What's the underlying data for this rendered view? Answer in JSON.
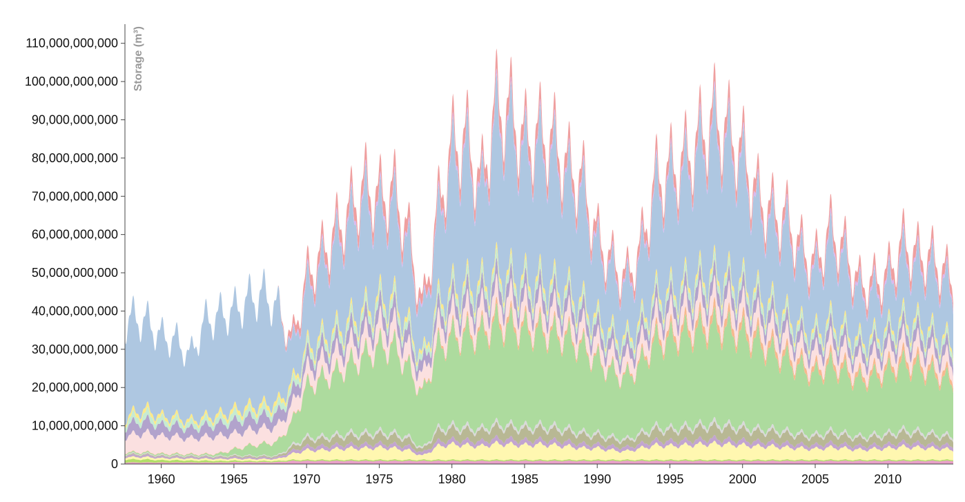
{
  "chart_data": {
    "type": "area",
    "stacked": true,
    "title": "",
    "xlabel": "",
    "ylabel": "Storage (m³)",
    "xlim": [
      1957.5,
      2014.5
    ],
    "ylim": [
      0,
      115000000000
    ],
    "grid": false,
    "legend": "none",
    "x_ticks": [
      {
        "value": 1960,
        "label": "1960"
      },
      {
        "value": 1965,
        "label": "1965"
      },
      {
        "value": 1970,
        "label": "1970"
      },
      {
        "value": 1975,
        "label": "1975"
      },
      {
        "value": 1980,
        "label": "1980"
      },
      {
        "value": 1985,
        "label": "1985"
      },
      {
        "value": 1990,
        "label": "1990"
      },
      {
        "value": 1995,
        "label": "1995"
      },
      {
        "value": 2000,
        "label": "2000"
      },
      {
        "value": 2005,
        "label": "2005"
      },
      {
        "value": 2010,
        "label": "2010"
      }
    ],
    "y_ticks": [
      {
        "value": 0,
        "label": "0"
      },
      {
        "value": 10000000000,
        "label": "10,000,000,000"
      },
      {
        "value": 20000000000,
        "label": "20,000,000,000"
      },
      {
        "value": 30000000000,
        "label": "30,000,000,000"
      },
      {
        "value": 40000000000,
        "label": "40,000,000,000"
      },
      {
        "value": 50000000000,
        "label": "50,000,000,000"
      },
      {
        "value": 60000000000,
        "label": "60,000,000,000"
      },
      {
        "value": 70000000000,
        "label": "70,000,000,000"
      },
      {
        "value": 80000000000,
        "label": "80,000,000,000"
      },
      {
        "value": 90000000000,
        "label": "90,000,000,000"
      },
      {
        "value": 100000000000,
        "label": "100,000,000,000"
      },
      {
        "value": 110000000000,
        "label": "110,000,000,000"
      }
    ],
    "x": [
      1957.5,
      1958,
      1959,
      1960,
      1961,
      1962,
      1963,
      1964,
      1965,
      1966,
      1967,
      1968,
      1969,
      1970,
      1971,
      1972,
      1973,
      1974,
      1975,
      1976,
      1977,
      1978,
      1979,
      1980,
      1981,
      1982,
      1983,
      1984,
      1985,
      1986,
      1987,
      1988,
      1989,
      1990,
      1991,
      1992,
      1993,
      1994,
      1995,
      1996,
      1997,
      1998,
      1999,
      2000,
      2001,
      2002,
      2003,
      2004,
      2005,
      2006,
      2007,
      2008,
      2009,
      2010,
      2011,
      2012,
      2013,
      2014,
      2014.5
    ],
    "series": [
      {
        "color": "#e8a0c8",
        "values": [
          0.4,
          0.4,
          0.4,
          0.4,
          0.4,
          0.4,
          0.4,
          0.4,
          0.5,
          0.5,
          0.5,
          0.5,
          0.8,
          0.8,
          0.8,
          0.8,
          0.8,
          0.8,
          0.8,
          0.8,
          0.8,
          0.8,
          0.8,
          0.8,
          0.8,
          0.8,
          0.8,
          0.8,
          0.8,
          0.8,
          0.8,
          0.8,
          0.8,
          0.8,
          0.8,
          0.8,
          0.8,
          0.8,
          0.8,
          0.8,
          0.8,
          0.8,
          0.8,
          0.8,
          0.8,
          0.8,
          0.8,
          0.8,
          0.8,
          0.8,
          0.8,
          0.8,
          0.8,
          0.8,
          0.8,
          0.8,
          0.8,
          0.8,
          0.8
        ]
      },
      {
        "color": "#b3de69",
        "values": [
          0.8,
          0.8,
          0.8,
          0.6,
          0.6,
          0.5,
          0.5,
          0.4,
          0.4,
          0.3,
          0.3,
          0.3,
          0.3,
          0.3,
          0.3,
          0.3,
          0.3,
          0.3,
          0.3,
          0.3,
          0.3,
          0.3,
          0.3,
          0.3,
          0.3,
          0.3,
          0.3,
          0.3,
          0.3,
          0.3,
          0.3,
          0.3,
          0.3,
          0.3,
          0.3,
          0.3,
          0.3,
          0.3,
          0.3,
          0.3,
          0.3,
          0.3,
          0.3,
          0.3,
          0.3,
          0.3,
          0.3,
          0.3,
          0.3,
          0.3,
          0.3,
          0.3,
          0.3,
          0.3,
          0.3,
          0.3,
          0.3,
          0.3,
          0.3
        ]
      },
      {
        "color": "#fff7b0",
        "values": [
          0.6,
          0.6,
          0.6,
          0.5,
          0.5,
          0.5,
          0.5,
          0.5,
          0.5,
          0.5,
          0.5,
          0.5,
          1.5,
          2.5,
          2.5,
          2.8,
          3.0,
          3.0,
          3.2,
          3.0,
          2.5,
          1.0,
          3.5,
          4.0,
          3.8,
          3.5,
          4.2,
          4.0,
          3.8,
          4.0,
          3.8,
          3.5,
          3.0,
          3.0,
          2.5,
          2.2,
          3.0,
          3.8,
          3.6,
          3.8,
          4.0,
          4.2,
          4.0,
          3.8,
          3.5,
          3.5,
          3.2,
          3.0,
          2.8,
          3.2,
          3.0,
          2.6,
          2.8,
          3.0,
          3.4,
          3.2,
          3.0,
          2.8,
          2.5
        ]
      },
      {
        "color": "#c2a5cf",
        "values": [
          0.5,
          0.5,
          0.5,
          0.4,
          0.4,
          0.4,
          0.4,
          0.4,
          0.4,
          0.4,
          0.4,
          0.4,
          0.8,
          1.0,
          1.0,
          1.0,
          1.0,
          1.0,
          1.0,
          1.0,
          1.0,
          0.8,
          1.2,
          1.2,
          1.2,
          1.2,
          1.3,
          1.3,
          1.2,
          1.2,
          1.2,
          1.2,
          1.1,
          1.0,
          1.0,
          1.0,
          1.1,
          1.2,
          1.2,
          1.2,
          1.2,
          1.3,
          1.2,
          1.2,
          1.2,
          1.1,
          1.1,
          1.0,
          1.0,
          1.1,
          1.0,
          1.0,
          1.0,
          1.0,
          1.1,
          1.1,
          1.0,
          1.0,
          1.0
        ]
      },
      {
        "color": "#b8b894",
        "values": [
          0.2,
          0.2,
          0.2,
          0.2,
          0.2,
          0.2,
          0.2,
          0.2,
          0.3,
          0.3,
          0.3,
          0.3,
          1.0,
          1.8,
          1.8,
          2.0,
          2.2,
          2.2,
          2.4,
          2.2,
          1.8,
          0.8,
          2.6,
          2.8,
          2.7,
          2.6,
          3.0,
          2.9,
          2.8,
          2.9,
          2.8,
          2.6,
          2.3,
          2.2,
          1.8,
          1.6,
          2.2,
          2.8,
          2.6,
          2.8,
          3.0,
          3.1,
          3.0,
          2.8,
          2.6,
          2.6,
          2.4,
          2.2,
          2.0,
          2.4,
          2.2,
          1.9,
          2.0,
          2.2,
          2.5,
          2.4,
          2.2,
          2.0,
          1.8
        ]
      },
      {
        "color": "#d9d9d9",
        "values": [
          0.2,
          0.2,
          0.2,
          0.2,
          0.2,
          0.2,
          0.2,
          0.2,
          0.2,
          0.2,
          0.2,
          0.2,
          0.5,
          0.7,
          0.7,
          0.7,
          0.8,
          0.8,
          0.8,
          0.8,
          0.7,
          0.4,
          0.8,
          0.9,
          0.9,
          0.8,
          0.9,
          0.9,
          0.9,
          0.9,
          0.9,
          0.8,
          0.8,
          0.7,
          0.7,
          0.6,
          0.7,
          0.9,
          0.8,
          0.9,
          0.9,
          1.0,
          0.9,
          0.9,
          0.8,
          0.8,
          0.8,
          0.7,
          0.7,
          0.8,
          0.7,
          0.6,
          0.7,
          0.7,
          0.8,
          0.8,
          0.7,
          0.7,
          0.6
        ]
      },
      {
        "color": "#addb9e",
        "values": [
          0.3,
          0.3,
          0.3,
          0.3,
          0.3,
          0.3,
          0.3,
          0.6,
          1.5,
          2.5,
          3.0,
          3.5,
          6.0,
          13.0,
          15.0,
          16.0,
          18.0,
          20.0,
          22.0,
          22.5,
          18.0,
          14.0,
          21.0,
          23.0,
          24.0,
          24.5,
          26.0,
          25.5,
          25.0,
          24.5,
          24.0,
          23.5,
          22.0,
          19.0,
          17.0,
          16.0,
          18.0,
          22.0,
          23.0,
          24.0,
          24.5,
          25.0,
          24.5,
          24.0,
          22.5,
          20.0,
          18.5,
          17.0,
          15.5,
          17.0,
          16.0,
          14.5,
          15.0,
          16.0,
          17.0,
          16.5,
          15.5,
          14.5,
          14.0
        ]
      },
      {
        "color": "#f6b98e",
        "values": [
          0.1,
          0.1,
          0.1,
          0.1,
          0.1,
          0.1,
          0.1,
          0.1,
          0.1,
          0.1,
          0.1,
          0.1,
          0.2,
          0.3,
          0.3,
          0.3,
          0.3,
          0.4,
          0.4,
          0.4,
          0.3,
          0.3,
          0.6,
          0.8,
          1.0,
          1.0,
          1.5,
          1.5,
          1.2,
          1.2,
          1.0,
          1.0,
          0.8,
          0.6,
          0.5,
          0.5,
          0.8,
          1.5,
          1.6,
          1.8,
          2.0,
          2.2,
          2.0,
          2.0,
          1.8,
          1.8,
          1.6,
          1.5,
          1.4,
          1.6,
          1.5,
          1.3,
          1.4,
          1.5,
          1.8,
          1.7,
          1.5,
          1.4,
          1.3
        ]
      },
      {
        "color": "#fbe0e0",
        "values": [
          4.0,
          4.5,
          5.0,
          4.5,
          4.5,
          4.0,
          4.5,
          4.5,
          4.0,
          4.0,
          4.0,
          4.0,
          4.0,
          4.0,
          4.2,
          4.5,
          4.5,
          4.8,
          5.0,
          5.0,
          4.5,
          4.0,
          4.5,
          4.8,
          5.0,
          5.0,
          5.2,
          5.0,
          5.0,
          5.0,
          5.0,
          4.8,
          4.5,
          4.2,
          4.0,
          4.0,
          4.2,
          4.5,
          4.5,
          4.8,
          5.0,
          5.0,
          5.0,
          4.8,
          4.5,
          4.5,
          4.2,
          4.0,
          4.0,
          4.2,
          4.0,
          3.8,
          3.8,
          4.0,
          4.2,
          4.2,
          4.0,
          3.8,
          3.5
        ]
      },
      {
        "color": "#b2a3cc",
        "values": [
          2.5,
          3.0,
          3.2,
          2.8,
          2.8,
          2.5,
          2.8,
          3.0,
          3.2,
          3.2,
          3.2,
          3.2,
          3.0,
          3.0,
          3.2,
          3.2,
          3.4,
          3.5,
          3.6,
          3.6,
          3.2,
          2.8,
          3.3,
          3.5,
          3.5,
          3.5,
          3.6,
          3.5,
          3.5,
          3.5,
          3.5,
          3.4,
          3.2,
          3.0,
          2.8,
          2.8,
          3.0,
          3.2,
          3.2,
          3.3,
          3.4,
          3.5,
          3.4,
          3.3,
          3.2,
          3.2,
          3.0,
          2.8,
          2.8,
          3.0,
          2.8,
          2.6,
          2.7,
          2.8,
          3.0,
          3.0,
          2.8,
          2.7,
          2.5
        ]
      },
      {
        "color": "#c6ebd2",
        "values": [
          1.5,
          1.6,
          1.8,
          1.5,
          1.5,
          1.4,
          1.5,
          1.6,
          1.8,
          1.8,
          1.8,
          1.8,
          1.8,
          1.8,
          1.9,
          2.0,
          2.0,
          2.1,
          2.2,
          2.2,
          1.9,
          1.6,
          2.0,
          2.1,
          2.1,
          2.1,
          2.2,
          2.1,
          2.1,
          2.1,
          2.1,
          2.0,
          1.9,
          1.8,
          1.7,
          1.7,
          1.8,
          1.9,
          1.9,
          2.0,
          2.0,
          2.1,
          2.0,
          2.0,
          1.9,
          1.9,
          1.8,
          1.7,
          1.7,
          1.8,
          1.7,
          1.6,
          1.6,
          1.7,
          1.8,
          1.8,
          1.7,
          1.6,
          1.5
        ]
      },
      {
        "color": "#fbe98a",
        "values": [
          0.8,
          1.0,
          1.2,
          0.9,
          0.9,
          0.8,
          0.9,
          1.0,
          1.2,
          1.2,
          1.2,
          1.2,
          1.1,
          1.1,
          1.2,
          1.2,
          1.3,
          1.3,
          1.4,
          1.4,
          1.2,
          0.9,
          1.2,
          1.3,
          1.3,
          1.3,
          1.4,
          1.3,
          1.3,
          1.3,
          1.3,
          1.2,
          1.2,
          1.1,
          1.0,
          1.0,
          1.1,
          1.2,
          1.2,
          1.2,
          1.3,
          1.3,
          1.3,
          1.2,
          1.2,
          1.2,
          1.1,
          1.0,
          1.0,
          1.1,
          1.0,
          1.0,
          1.0,
          1.0,
          1.1,
          1.1,
          1.0,
          1.0,
          0.9
        ]
      },
      {
        "color": "#aec7e1",
        "values": [
          25.0,
          25.0,
          23.0,
          21.0,
          20.0,
          17.0,
          25.0,
          26.0,
          26.0,
          28.0,
          29.0,
          25.0,
          9.0,
          15.0,
          18.0,
          22.0,
          25.0,
          28.0,
          22.0,
          24.0,
          20.0,
          10.0,
          20.0,
          33.0,
          34.0,
          22.0,
          38.0,
          38.0,
          32.0,
          34.0,
          33.0,
          28.0,
          28.0,
          18.0,
          16.0,
          13.0,
          16.0,
          26.0,
          28.0,
          28.0,
          32.0,
          36.0,
          34.0,
          30.0,
          22.0,
          20.0,
          22.0,
          17.0,
          15.0,
          20.0,
          18.0,
          12.0,
          11.0,
          11.0,
          16.0,
          14.0,
          16.0,
          14.0,
          13.5
        ]
      },
      {
        "color": "#d9b8f0",
        "values": [
          0.0,
          0.0,
          0.0,
          0.0,
          0.0,
          0.0,
          0.0,
          0.0,
          0.0,
          0.0,
          0.0,
          0.0,
          0.5,
          0.8,
          0.8,
          0.9,
          1.0,
          1.0,
          1.0,
          1.0,
          0.9,
          0.7,
          1.0,
          1.1,
          1.1,
          1.0,
          1.2,
          1.2,
          1.1,
          1.1,
          1.1,
          1.0,
          1.0,
          0.9,
          0.8,
          0.8,
          0.9,
          1.0,
          1.0,
          1.1,
          1.1,
          1.2,
          1.1,
          1.1,
          1.0,
          1.0,
          1.0,
          0.9,
          0.9,
          1.0,
          0.9,
          0.8,
          0.9,
          0.9,
          1.0,
          1.0,
          0.9,
          0.9,
          0.8
        ]
      },
      {
        "color": "#ef9f9f",
        "values": [
          0.0,
          0.0,
          0.0,
          0.0,
          0.0,
          0.0,
          0.0,
          0.0,
          0.0,
          0.0,
          0.0,
          0.0,
          2.0,
          3.0,
          3.2,
          3.5,
          3.5,
          4.0,
          4.0,
          4.0,
          3.5,
          2.5,
          3.5,
          4.0,
          4.0,
          3.5,
          4.5,
          4.5,
          4.0,
          4.0,
          4.0,
          3.8,
          3.5,
          3.0,
          2.5,
          2.5,
          3.0,
          3.5,
          3.5,
          3.8,
          4.0,
          4.2,
          4.0,
          3.8,
          3.5,
          3.5,
          3.2,
          3.0,
          2.8,
          3.2,
          3.0,
          2.6,
          2.8,
          3.0,
          3.4,
          3.2,
          3.0,
          2.8,
          2.5
        ]
      }
    ],
    "value_unit_multiplier": 1000000000
  }
}
